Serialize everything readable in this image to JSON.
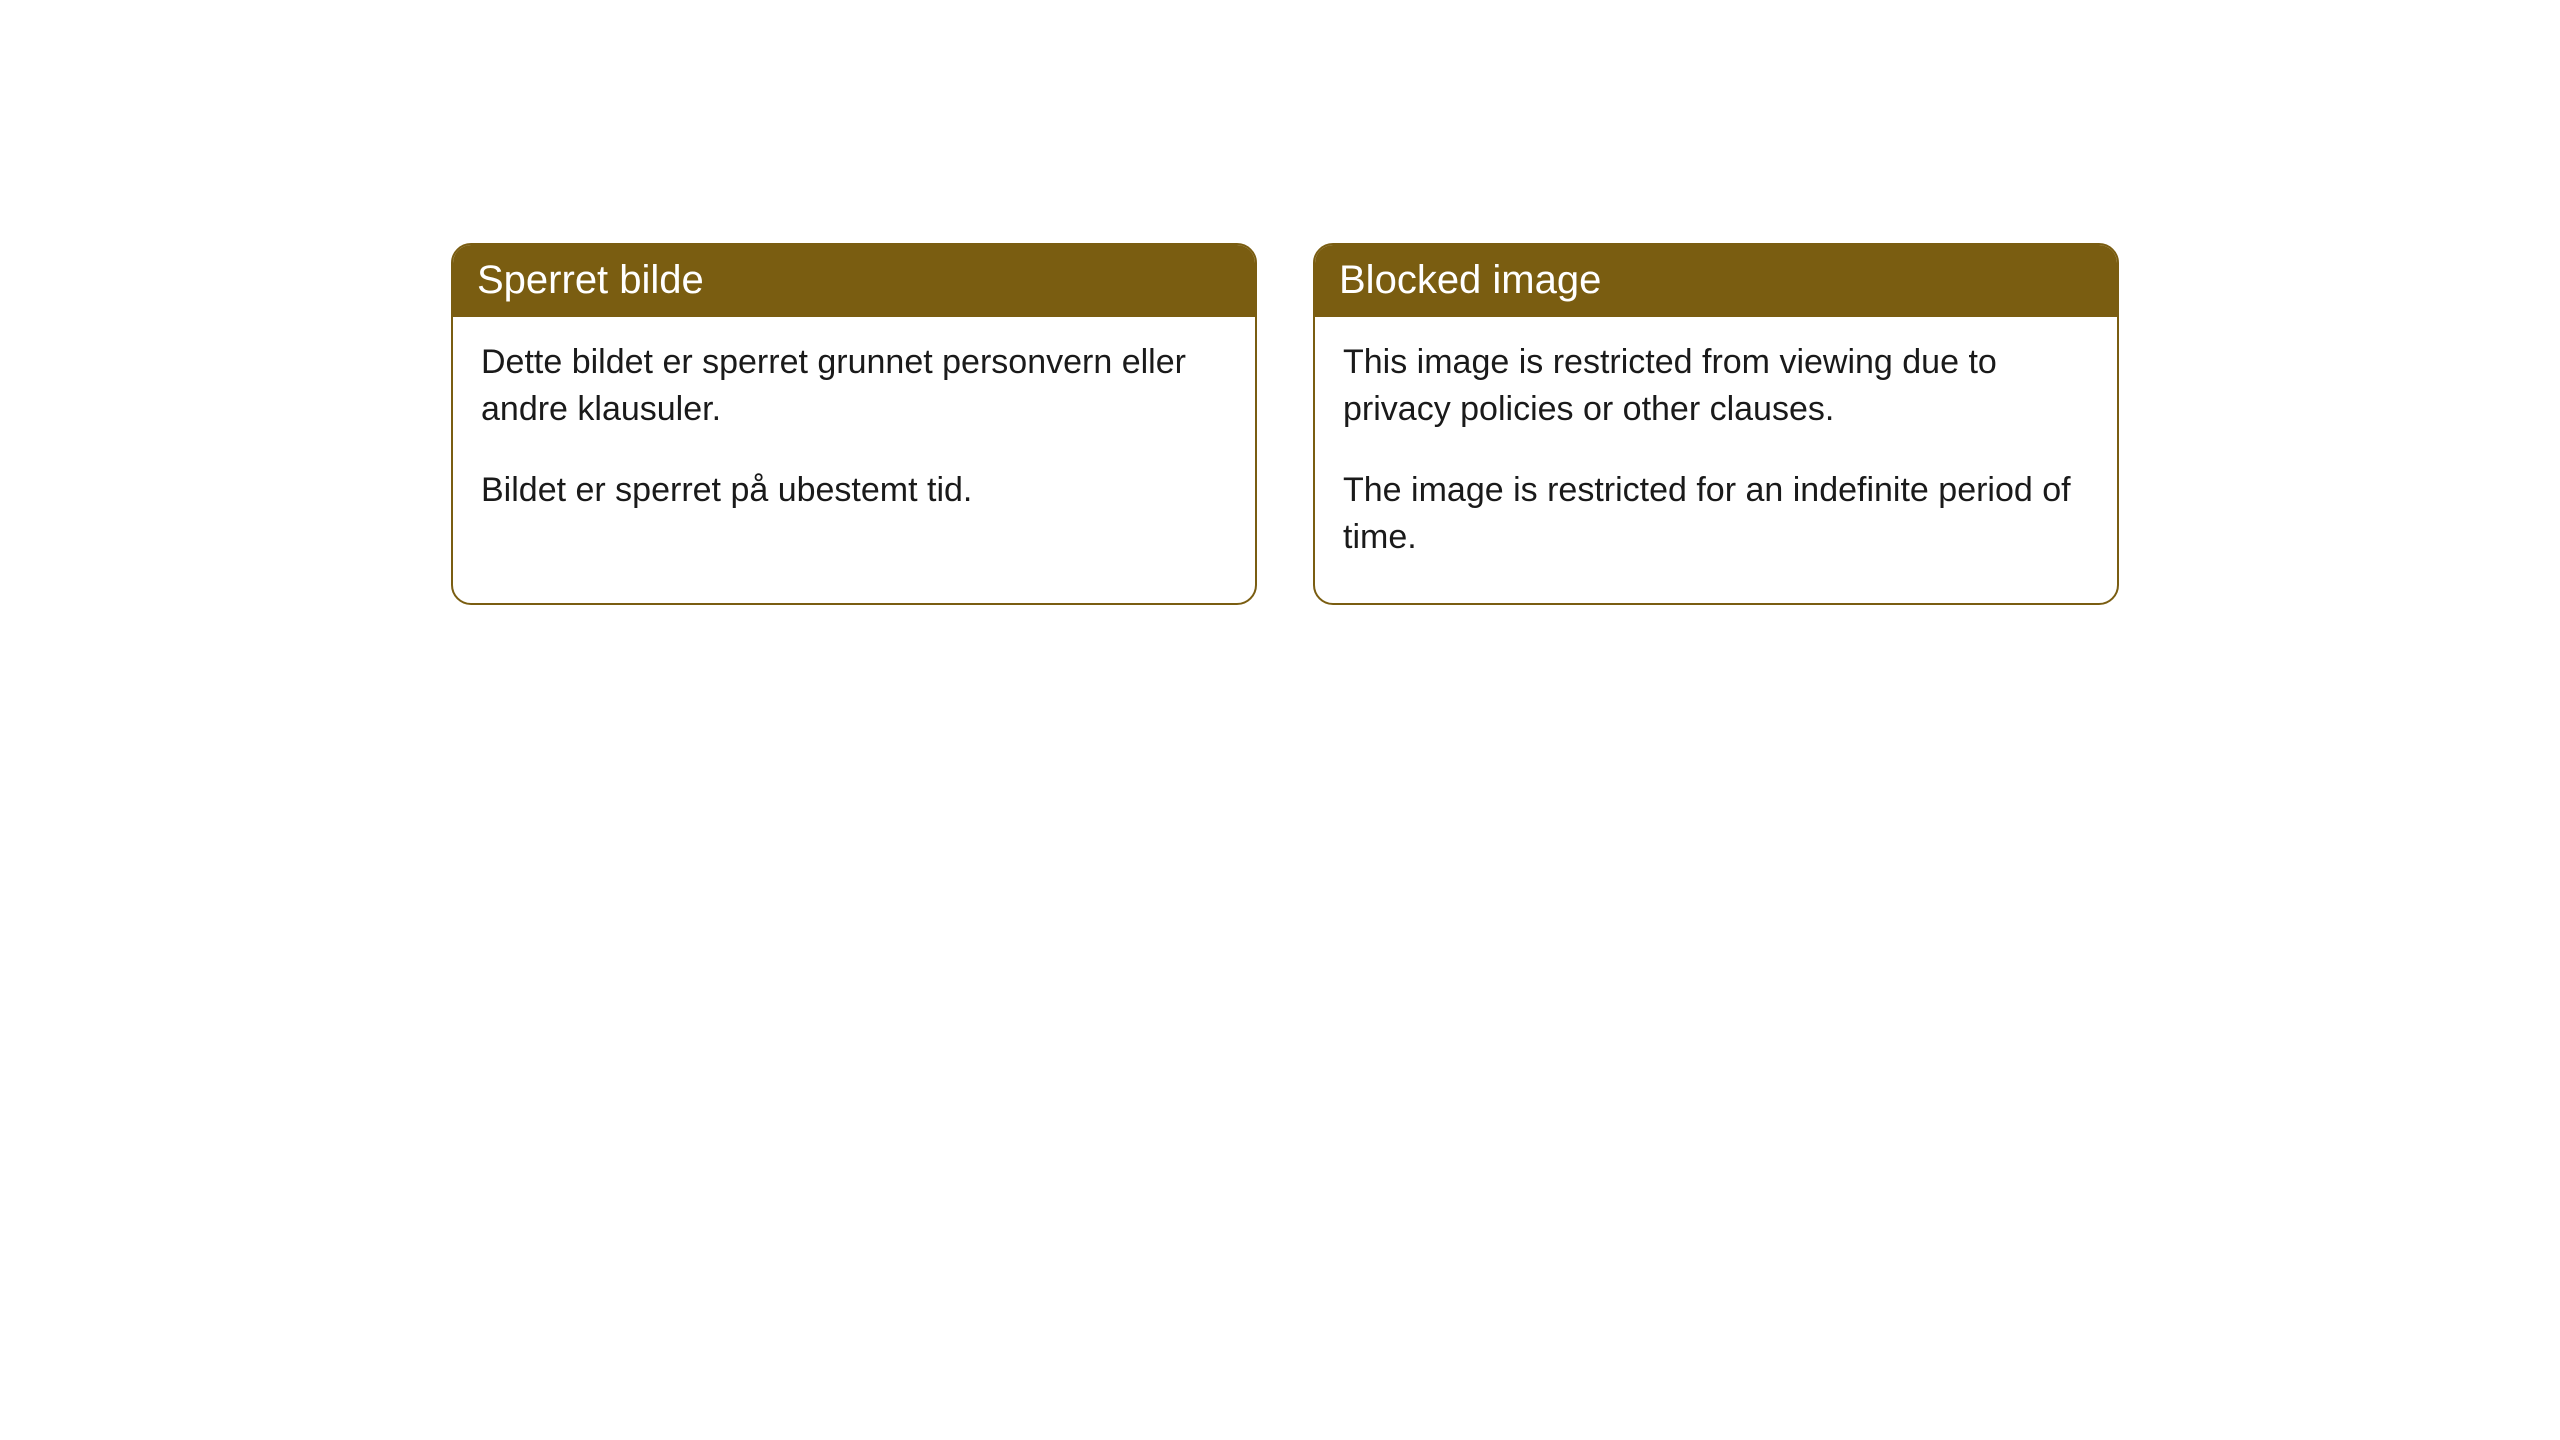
{
  "cards": [
    {
      "header": "Sperret bilde",
      "paragraph1": "Dette bildet er sperret grunnet personvern eller andre klausuler.",
      "paragraph2": "Bildet er sperret på ubestemt tid."
    },
    {
      "header": "Blocked image",
      "paragraph1": "This image is restricted from viewing due to privacy policies or other clauses.",
      "paragraph2": "The image is restricted for an indefinite period of time."
    }
  ],
  "style": {
    "header_bg_color": "#7a5d11",
    "header_text_color": "#ffffff",
    "card_border_color": "#7a5d11",
    "card_bg_color": "#ffffff",
    "body_text_color": "#1a1a1a",
    "page_bg_color": "#ffffff",
    "border_radius": 20,
    "header_fontsize": 40,
    "body_fontsize": 34
  }
}
